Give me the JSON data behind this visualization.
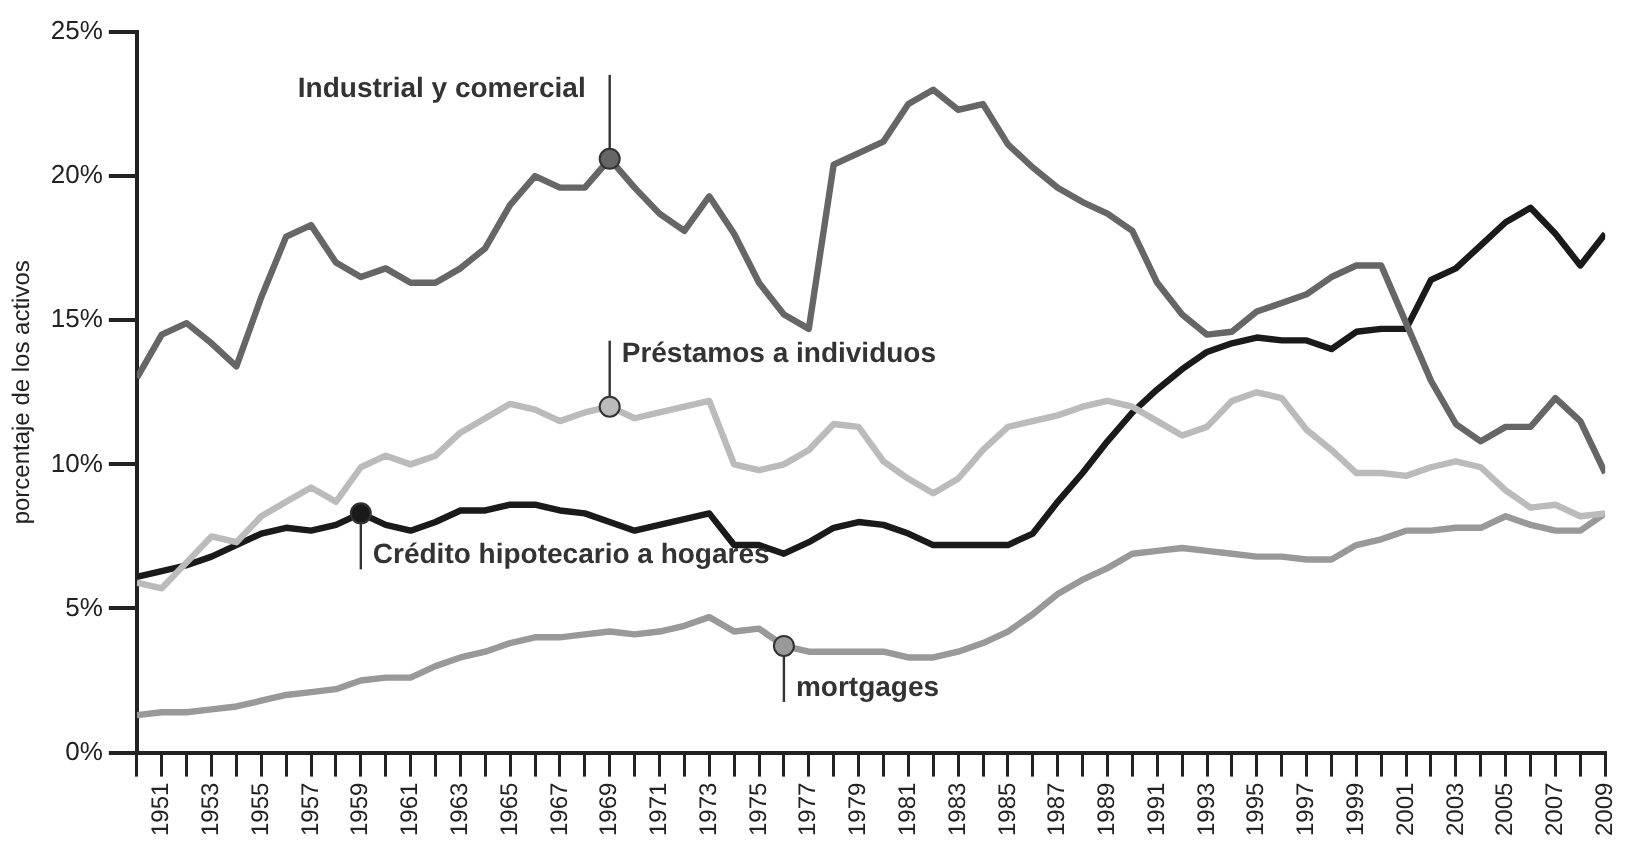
{
  "chart_data": {
    "type": "line",
    "ylabel": "porcentaje de los activos",
    "x": [
      1950,
      1951,
      1952,
      1953,
      1954,
      1955,
      1956,
      1957,
      1958,
      1959,
      1960,
      1961,
      1962,
      1963,
      1964,
      1965,
      1966,
      1967,
      1968,
      1969,
      1970,
      1971,
      1972,
      1973,
      1974,
      1975,
      1976,
      1977,
      1978,
      1979,
      1980,
      1981,
      1982,
      1983,
      1984,
      1985,
      1986,
      1987,
      1988,
      1989,
      1990,
      1991,
      1992,
      1993,
      1994,
      1995,
      1996,
      1997,
      1998,
      1999,
      2000,
      2001,
      2002,
      2003,
      2004,
      2005,
      2006,
      2007,
      2008,
      2009
    ],
    "series": [
      {
        "color": "#666666",
        "values": [
          13.0,
          14.5,
          14.9,
          14.2,
          13.4,
          15.8,
          17.9,
          18.3,
          17.0,
          16.5,
          16.8,
          16.3,
          16.3,
          16.8,
          17.5,
          19.0,
          20.0,
          19.6,
          19.6,
          20.6,
          19.6,
          18.7,
          18.1,
          19.3,
          18.0,
          16.3,
          15.2,
          14.7,
          20.4,
          20.8,
          21.2,
          22.5,
          23.0,
          22.3,
          22.5,
          21.1,
          20.3,
          19.6,
          19.1,
          18.7,
          18.1,
          16.3,
          15.2,
          14.5,
          14.6,
          15.3,
          15.6,
          15.9,
          16.5,
          16.9,
          16.9,
          14.9,
          12.9,
          11.4,
          10.8,
          11.3,
          11.3,
          12.3,
          11.5,
          9.7
        ]
      },
      {
        "color": "#bbbbbb",
        "values": [
          5.9,
          5.7,
          6.6,
          7.5,
          7.3,
          8.2,
          8.7,
          9.2,
          8.7,
          9.9,
          10.3,
          10.0,
          10.3,
          11.1,
          11.6,
          12.1,
          11.9,
          11.5,
          11.8,
          12.0,
          11.6,
          11.8,
          12.0,
          12.2,
          10.0,
          9.8,
          10.0,
          10.5,
          11.4,
          11.3,
          10.1,
          9.5,
          9.0,
          9.5,
          10.5,
          11.3,
          11.5,
          11.7,
          12.0,
          12.2,
          12.0,
          11.5,
          11.0,
          11.3,
          12.2,
          12.5,
          12.3,
          11.2,
          10.5,
          9.7,
          9.7,
          9.6,
          9.9,
          10.1,
          9.9,
          9.1,
          8.5,
          8.6,
          8.2,
          8.3
        ]
      },
      {
        "color": "#1a1a1a",
        "values": [
          6.1,
          6.3,
          6.5,
          6.8,
          7.2,
          7.6,
          7.8,
          7.7,
          7.9,
          8.3,
          7.9,
          7.7,
          8.0,
          8.4,
          8.4,
          8.6,
          8.6,
          8.4,
          8.3,
          8.0,
          7.7,
          7.9,
          8.1,
          8.3,
          7.2,
          7.2,
          6.9,
          7.3,
          7.8,
          8.0,
          7.9,
          7.6,
          7.2,
          7.2,
          7.2,
          7.2,
          7.6,
          8.7,
          9.7,
          10.8,
          11.8,
          12.6,
          13.3,
          13.9,
          14.2,
          14.4,
          14.3,
          14.3,
          14.0,
          14.6,
          14.7,
          14.7,
          16.4,
          16.8,
          17.6,
          18.4,
          18.9,
          18.0,
          16.9,
          18.0
        ]
      },
      {
        "color": "#999999",
        "values": [
          1.3,
          1.4,
          1.4,
          1.5,
          1.6,
          1.8,
          2.0,
          2.1,
          2.2,
          2.5,
          2.6,
          2.6,
          3.0,
          3.3,
          3.5,
          3.8,
          4.0,
          4.0,
          4.1,
          4.2,
          4.1,
          4.2,
          4.4,
          4.7,
          4.2,
          4.3,
          3.7,
          3.5,
          3.5,
          3.5,
          3.5,
          3.3,
          3.3,
          3.5,
          3.8,
          4.2,
          4.8,
          5.5,
          6.0,
          6.4,
          6.9,
          7.0,
          7.1,
          7.0,
          6.9,
          6.8,
          6.8,
          6.7,
          6.7,
          7.2,
          7.4,
          7.7,
          7.7,
          7.8,
          7.8,
          8.2,
          7.9,
          7.7,
          7.7,
          8.3
        ]
      }
    ],
    "annotations": [
      {
        "text": "Industrial y comercial",
        "x": 1969,
        "y": 20.6
      },
      {
        "text": "Préstamos a individuos",
        "x": 1969,
        "y": 12.0
      },
      {
        "text": "Crédito hipotecario a hogares",
        "x": 1959,
        "y": 8.3
      },
      {
        "text": "mortgages",
        "x": 1976,
        "y": 3.7
      }
    ],
    "xlim": [
      1950,
      2009
    ],
    "xticks": [
      {
        "value": 1950,
        "label": null
      },
      1951,
      {
        "value": 1952,
        "label": null
      },
      1953,
      {
        "value": 1954,
        "label": null
      },
      1955,
      {
        "value": 1956,
        "label": null
      },
      1957,
      {
        "value": 1958,
        "label": null
      },
      1959,
      {
        "value": 1960,
        "label": null
      },
      1961,
      {
        "value": 1962,
        "label": null
      },
      1963,
      {
        "value": 1964,
        "label": null
      },
      1965,
      {
        "value": 1966,
        "label": null
      },
      1967,
      {
        "value": 1968,
        "label": null
      },
      1969,
      {
        "value": 1970,
        "label": null
      },
      1971,
      {
        "value": 1972,
        "label": null
      },
      1973,
      {
        "value": 1974,
        "label": null
      },
      1975,
      {
        "value": 1976,
        "label": null
      },
      1977,
      {
        "value": 1978,
        "label": null
      },
      1979,
      {
        "value": 1980,
        "label": null
      },
      1981,
      {
        "value": 1982,
        "label": null
      },
      1983,
      {
        "value": 1984,
        "label": null
      },
      1985,
      {
        "value": 1986,
        "label": null
      },
      1987,
      {
        "value": 1988,
        "label": null
      },
      1989,
      {
        "value": 1990,
        "label": null
      },
      1991,
      {
        "value": 1992,
        "label": null
      },
      1993,
      {
        "value": 1994,
        "label": null
      },
      1995,
      {
        "value": 1996,
        "label": null
      },
      1997,
      {
        "value": 1998,
        "label": null
      },
      1999,
      {
        "value": 2000,
        "label": null
      },
      2001,
      {
        "value": 2002,
        "label": null
      },
      2003,
      {
        "value": 2004,
        "label": null
      },
      2005,
      {
        "value": 2006,
        "label": null
      },
      2007,
      {
        "value": 2008,
        "label": null
      },
      2009
    ],
    "ylim": [
      0,
      25
    ],
    "yticks": [
      {
        "value": 0,
        "label": "0%"
      },
      {
        "value": 5,
        "label": "5%"
      },
      {
        "value": 10,
        "label": "10%"
      },
      {
        "value": 15,
        "label": "15%"
      },
      {
        "value": 20,
        "label": "20%"
      },
      {
        "value": 25,
        "label": "25%"
      }
    ],
    "grid": false,
    "legend": false,
    "marker": "none",
    "line_style": "solid"
  }
}
